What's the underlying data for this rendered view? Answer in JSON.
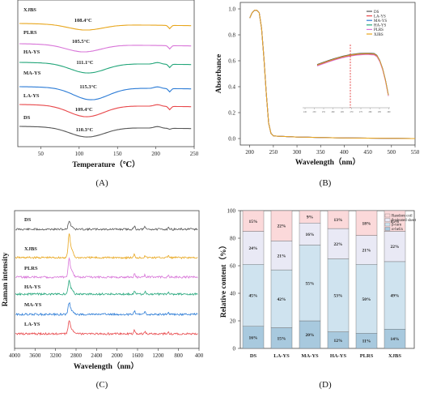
{
  "panels": {
    "a": "(A)",
    "b": "(B)",
    "c": "(C)",
    "d": "(D)"
  },
  "colors": {
    "DS": "#555555",
    "LA-YS": "#e8474a",
    "MA-YS": "#2b7bd6",
    "HA-YS": "#23a67a",
    "PLRS": "#d874d8",
    "XJBS": "#e8a61c"
  },
  "chart_data": [
    {
      "type": "line",
      "xlabel": "Temperature（℃）",
      "ylabel": "",
      "xlim": [
        20,
        250
      ],
      "xticks": [
        50,
        100,
        150,
        200,
        250
      ],
      "series": [
        {
          "name": "DS",
          "peak_label": "110.3°C",
          "peak_x": 110.3
        },
        {
          "name": "LA-YS",
          "peak_label": "109.4°C",
          "peak_x": 109.4
        },
        {
          "name": "MA-YS",
          "peak_label": "115.3°C",
          "peak_x": 115.3
        },
        {
          "name": "HA-YS",
          "peak_label": "111.1°C",
          "peak_x": 111.1
        },
        {
          "name": "PLRS",
          "peak_label": "105.5°C",
          "peak_x": 105.5
        },
        {
          "name": "XJBS",
          "peak_label": "108.4°C",
          "peak_x": 108.4
        }
      ]
    },
    {
      "type": "line",
      "xlabel": "Wavelength（nm）",
      "ylabel": "Absorbance",
      "xlim": [
        180,
        550
      ],
      "ylim": [
        -0.05,
        1.05
      ],
      "xticks": [
        200,
        250,
        300,
        350,
        400,
        450,
        500,
        550
      ],
      "yticks": [
        "0.0",
        "0.2",
        "0.4",
        "0.6",
        "0.8",
        "1.0"
      ],
      "legend": [
        "DS",
        "LA-YS",
        "MA-YS",
        "HA-YS",
        "PLRS",
        "XJBS"
      ],
      "legend_position": "top-right",
      "x": [
        200,
        205,
        210,
        215,
        220,
        225,
        230,
        235,
        240,
        245,
        250,
        260,
        280,
        300,
        350,
        400,
        450,
        500,
        550
      ],
      "y": [
        0.93,
        0.97,
        0.99,
        0.99,
        0.97,
        0.85,
        0.62,
        0.35,
        0.12,
        0.04,
        0.02,
        0.018,
        0.015,
        0.012,
        0.008,
        0.005,
        0.003,
        0.002,
        0.0
      ],
      "inset_ticks": [
        "245",
        "250",
        "255",
        "260",
        "265",
        "270",
        "275",
        "280",
        "285",
        "290"
      ]
    },
    {
      "type": "line",
      "xlabel": "Wavelength（nm）",
      "ylabel": "Raman intensity",
      "xlim": [
        4000,
        400
      ],
      "xticks": [
        4000,
        3600,
        3200,
        2800,
        2400,
        2000,
        1600,
        1200,
        800,
        400
      ],
      "series": [
        {
          "name": "DS"
        },
        {
          "name": "XJBS"
        },
        {
          "name": "PLRS"
        },
        {
          "name": "HA-YS"
        },
        {
          "name": "MA-YS"
        },
        {
          "name": "LA-YS"
        }
      ]
    },
    {
      "type": "bar",
      "xlabel": "",
      "ylabel": "Relative content（%）",
      "ylim": [
        0,
        100
      ],
      "yticks": [
        0,
        20,
        40,
        60,
        80,
        100
      ],
      "categories": [
        "DS",
        "LA-YS",
        "MA-YS",
        "HA-YS",
        "PLRS",
        "XJBS"
      ],
      "legend": [
        "Random coil",
        "β-pleated sheet",
        "β-turn",
        "α-helix"
      ],
      "series": [
        {
          "name": "α-helix",
          "values": [
            16,
            15,
            20,
            12,
            11,
            14
          ],
          "color": "#a8c9de"
        },
        {
          "name": "β-turn",
          "values": [
            45,
            42,
            55,
            53,
            50,
            49
          ],
          "color": "#cfe3ef"
        },
        {
          "name": "β-pleated sheet",
          "values": [
            24,
            21,
            16,
            22,
            21,
            22
          ],
          "color": "#e9e9f5"
        },
        {
          "name": "Random coil",
          "values": [
            15,
            22,
            9,
            13,
            18,
            15
          ],
          "color": "#fbd9da"
        }
      ]
    }
  ]
}
